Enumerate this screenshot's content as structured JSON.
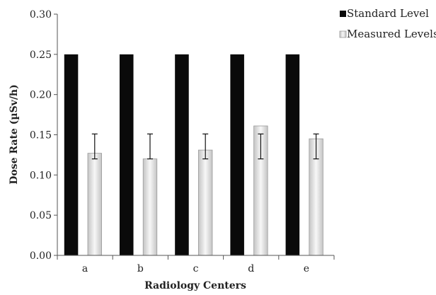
{
  "chart_data": {
    "type": "bar",
    "xlabel": "Radiology Centers",
    "ylabel": "Dose Rate (µSv/h)",
    "categories": [
      "a",
      "b",
      "c",
      "d",
      "e"
    ],
    "ylim": [
      0,
      0.3
    ],
    "yticks": [
      "0.00",
      "0.05",
      "0.10",
      "0.15",
      "0.20",
      "0.25",
      "0.30"
    ],
    "grid": false,
    "legend_position": "top-right",
    "series": [
      {
        "name": "Standard Level",
        "values": [
          0.25,
          0.25,
          0.25,
          0.25,
          0.25
        ],
        "color": "#0a0a0a"
      },
      {
        "name": "Measured Levels",
        "values": [
          0.127,
          0.12,
          0.131,
          0.161,
          0.145
        ],
        "error_low": [
          0.12,
          0.12,
          0.12,
          0.12,
          0.12
        ],
        "error_high": [
          0.151,
          0.151,
          0.151,
          0.151,
          0.151
        ],
        "color": "#d9d9d9"
      }
    ]
  }
}
